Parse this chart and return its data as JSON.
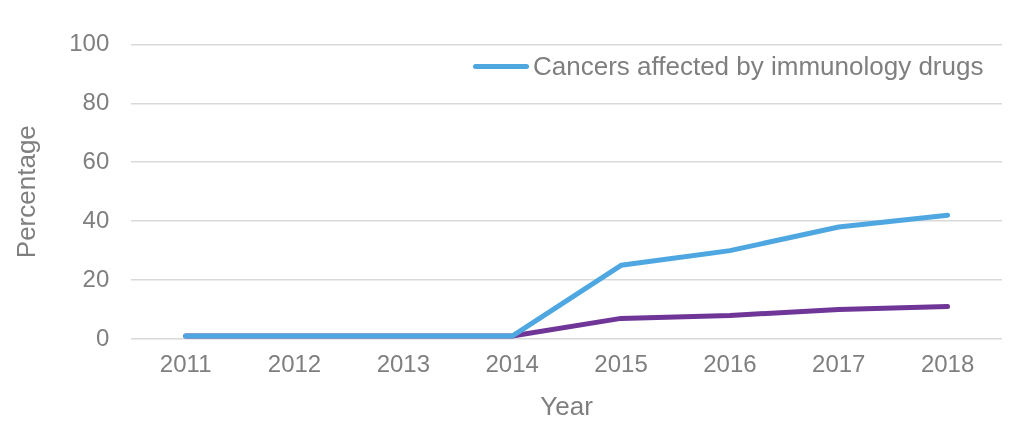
{
  "chart_data": {
    "type": "line",
    "xlabel": "Year",
    "ylabel": "Percentage",
    "categories": [
      "2011",
      "2012",
      "2013",
      "2014",
      "2015",
      "2016",
      "2017",
      "2018"
    ],
    "series": [
      {
        "name": "Cancers affected by immunology drugs",
        "color": "#4ea7e0",
        "values": [
          1,
          1,
          1,
          1,
          25,
          30,
          38,
          42
        ]
      },
      {
        "color": "#6f3597",
        "values": [
          1,
          1,
          1,
          1,
          7,
          8,
          10,
          11
        ]
      }
    ],
    "ylim": [
      0,
      100
    ],
    "yticks": [
      0,
      20,
      40,
      60,
      80,
      100
    ],
    "grid": "y",
    "legend": "top right",
    "marker": "none",
    "line_style": "solid"
  }
}
